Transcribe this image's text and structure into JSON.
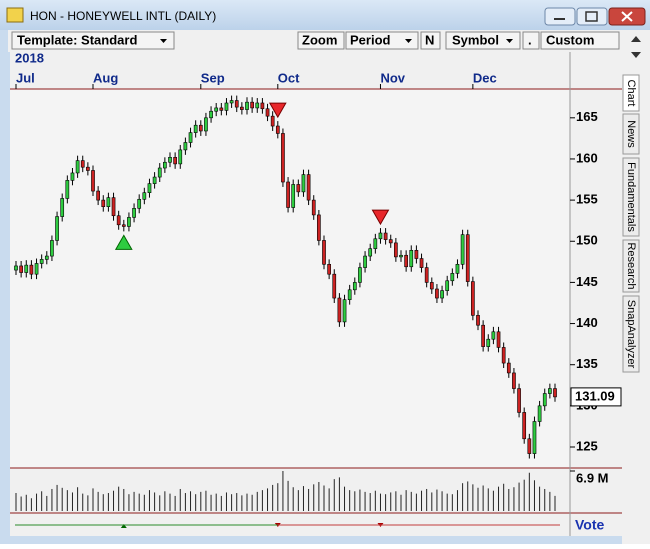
{
  "window": {
    "title": "HON - HONEYWELL INTL (DAILY)"
  },
  "toolbar": {
    "template": "Template: Standard",
    "zoom": "Zoom",
    "period": "Period",
    "n": "N",
    "symbol": "Symbol",
    "dot": ".",
    "custom": "Custom"
  },
  "tabs": [
    "Chart",
    "News",
    "Fundamentals",
    "Research",
    "SnapAnalyzer"
  ],
  "vote_label": "Vote",
  "chart_data": {
    "type": "candlestick",
    "year_label": "2018",
    "xticks": [
      {
        "value": 0,
        "label": "Jul"
      },
      {
        "value": 15,
        "label": "Aug"
      },
      {
        "value": 36,
        "label": "Sep"
      },
      {
        "value": 51,
        "label": "Oct"
      },
      {
        "value": 71,
        "label": "Nov"
      },
      {
        "value": 89,
        "label": "Dec"
      }
    ],
    "ylim": [
      122.45,
      168.5
    ],
    "yticks": [
      125,
      130,
      135,
      140,
      145,
      150,
      155,
      160,
      165
    ],
    "last_price": 131.09,
    "up_color": "#2ecc40",
    "down_color": "#cc2222",
    "open": [
      146.5,
      147.0,
      146.2,
      147.1,
      146.0,
      147.3,
      147.8,
      148.2,
      150.1,
      153.0,
      155.2,
      157.4,
      158.3,
      159.8,
      159.0,
      158.6,
      156.1,
      155.0,
      154.2,
      155.3,
      153.1,
      152.0,
      151.8,
      152.9,
      154.0,
      155.1,
      155.9,
      157.0,
      157.8,
      158.9,
      159.6,
      160.2,
      159.4,
      161.1,
      162.0,
      163.2,
      164.1,
      163.4,
      165.0,
      165.8,
      166.2,
      165.9,
      166.8,
      167.1,
      166.3,
      166.0,
      166.9,
      166.2,
      166.8,
      166.1,
      165.2,
      164.0,
      163.1,
      157.2,
      154.1,
      156.9,
      156.0,
      158.1,
      155.0,
      153.2,
      150.1,
      147.2,
      146.0,
      143.1,
      140.2,
      142.9,
      144.1,
      145.0,
      146.8,
      148.2,
      149.1,
      150.3,
      151.0,
      150.2,
      149.8,
      148.1,
      148.3,
      146.9,
      148.9,
      147.9,
      146.8,
      145.0,
      144.2,
      143.1,
      144.0,
      145.2,
      146.1,
      147.2,
      150.8,
      145.1,
      141.0,
      139.8,
      137.2,
      138.1,
      139.0,
      137.1,
      135.2,
      134.0,
      132.1,
      129.2,
      126.0,
      124.2,
      128.1,
      130.0,
      131.5,
      132.1
    ],
    "high": [
      147.6,
      147.6,
      147.7,
      147.7,
      147.9,
      148.4,
      148.8,
      150.7,
      153.6,
      155.8,
      158.0,
      158.9,
      160.4,
      160.4,
      159.6,
      159.2,
      156.7,
      155.6,
      155.9,
      155.9,
      153.7,
      152.6,
      153.5,
      154.6,
      155.7,
      156.5,
      157.6,
      158.4,
      159.5,
      160.2,
      160.8,
      160.8,
      161.7,
      162.6,
      163.8,
      164.7,
      164.7,
      165.6,
      166.4,
      166.8,
      166.8,
      167.4,
      167.7,
      167.7,
      166.9,
      167.5,
      167.5,
      167.4,
      167.4,
      166.7,
      165.8,
      164.6,
      163.7,
      157.8,
      157.5,
      157.5,
      158.7,
      158.7,
      155.6,
      153.8,
      150.7,
      147.8,
      146.6,
      143.7,
      143.5,
      144.7,
      145.6,
      147.4,
      148.8,
      149.7,
      150.9,
      151.6,
      151.6,
      150.8,
      150.4,
      148.9,
      148.9,
      149.5,
      149.5,
      148.5,
      147.4,
      145.6,
      144.8,
      144.6,
      145.8,
      146.7,
      147.8,
      151.4,
      151.4,
      145.7,
      141.6,
      140.4,
      138.7,
      139.6,
      139.6,
      137.7,
      135.8,
      134.6,
      132.7,
      129.8,
      126.6,
      128.7,
      130.6,
      132.1,
      132.7,
      132.7
    ],
    "low": [
      145.9,
      145.6,
      145.6,
      145.4,
      145.4,
      146.7,
      147.2,
      147.6,
      149.5,
      152.4,
      154.6,
      156.8,
      157.7,
      158.4,
      158.0,
      155.5,
      154.4,
      153.6,
      153.6,
      152.5,
      151.4,
      151.2,
      151.2,
      152.3,
      153.4,
      154.5,
      155.3,
      156.4,
      157.2,
      158.3,
      159.0,
      158.8,
      158.8,
      160.5,
      161.4,
      162.6,
      162.8,
      162.8,
      164.4,
      165.2,
      165.3,
      165.3,
      166.2,
      165.7,
      165.4,
      165.4,
      165.6,
      165.6,
      165.5,
      164.6,
      163.4,
      162.5,
      156.6,
      153.5,
      153.5,
      155.4,
      155.4,
      154.4,
      152.6,
      149.5,
      146.6,
      145.4,
      142.5,
      139.6,
      139.6,
      142.3,
      143.5,
      144.4,
      146.2,
      147.6,
      148.5,
      149.7,
      149.6,
      149.2,
      147.5,
      147.5,
      146.3,
      146.3,
      147.3,
      146.2,
      144.4,
      143.6,
      142.5,
      142.5,
      143.4,
      144.6,
      145.5,
      146.6,
      144.5,
      140.4,
      139.2,
      136.6,
      136.6,
      137.5,
      136.5,
      134.6,
      133.4,
      131.5,
      128.6,
      125.4,
      123.6,
      123.6,
      127.5,
      129.4,
      130.9,
      130.5
    ],
    "close": [
      147.0,
      146.2,
      147.1,
      146.0,
      147.3,
      147.8,
      148.2,
      150.1,
      153.0,
      155.2,
      157.4,
      158.3,
      159.8,
      159.0,
      158.6,
      156.1,
      155.0,
      154.2,
      155.3,
      153.1,
      152.0,
      151.8,
      152.9,
      154.0,
      155.1,
      155.9,
      157.0,
      157.8,
      158.9,
      159.6,
      160.2,
      159.4,
      161.1,
      162.0,
      163.2,
      164.1,
      163.4,
      165.0,
      165.8,
      166.2,
      165.9,
      166.8,
      167.1,
      166.3,
      166.0,
      166.9,
      166.2,
      166.8,
      166.1,
      165.2,
      164.0,
      163.1,
      157.2,
      154.1,
      156.9,
      156.0,
      158.1,
      155.0,
      153.2,
      150.1,
      147.2,
      146.0,
      143.1,
      140.2,
      142.9,
      144.1,
      145.0,
      146.8,
      148.2,
      149.1,
      150.3,
      151.0,
      150.2,
      149.8,
      148.1,
      148.3,
      146.9,
      148.9,
      147.9,
      146.8,
      145.0,
      144.2,
      143.1,
      144.0,
      145.2,
      146.1,
      147.2,
      150.8,
      145.1,
      141.0,
      139.8,
      137.2,
      138.1,
      139.0,
      137.1,
      135.2,
      134.0,
      132.1,
      129.2,
      126.0,
      124.2,
      128.1,
      130.0,
      131.5,
      132.1,
      131.09
    ],
    "volume": [
      3.1,
      2.5,
      2.8,
      2.2,
      3.0,
      3.4,
      2.6,
      3.8,
      4.5,
      4.0,
      3.6,
      3.2,
      4.1,
      3.0,
      2.7,
      3.9,
      3.3,
      2.9,
      3.1,
      3.5,
      4.2,
      3.8,
      2.9,
      3.3,
      3.0,
      2.8,
      3.6,
      3.2,
      2.7,
      3.4,
      3.0,
      2.6,
      3.8,
      3.1,
      3.4,
      2.9,
      3.3,
      3.5,
      2.8,
      3.0,
      2.6,
      3.2,
      2.9,
      3.1,
      2.7,
      3.0,
      2.8,
      3.3,
      3.6,
      3.9,
      4.5,
      4.8,
      6.9,
      5.2,
      4.1,
      3.6,
      4.3,
      3.8,
      4.6,
      5.0,
      4.4,
      3.9,
      5.5,
      5.8,
      4.2,
      3.6,
      3.4,
      3.7,
      3.3,
      3.1,
      3.5,
      3.0,
      2.9,
      3.2,
      3.4,
      2.8,
      3.6,
      3.3,
      3.0,
      3.5,
      3.8,
      3.2,
      3.7,
      3.4,
      3.0,
      2.9,
      3.6,
      4.8,
      5.1,
      4.6,
      4.0,
      4.4,
      3.9,
      3.5,
      4.2,
      4.7,
      3.8,
      4.1,
      4.9,
      5.4,
      6.6,
      5.3,
      4.2,
      3.8,
      3.3,
      2.6
    ],
    "volume_ticks": [
      {
        "value": 6.9,
        "label": "6.9 M"
      }
    ],
    "buy_signals": [
      21
    ],
    "sell_signals": [
      51,
      71
    ]
  }
}
